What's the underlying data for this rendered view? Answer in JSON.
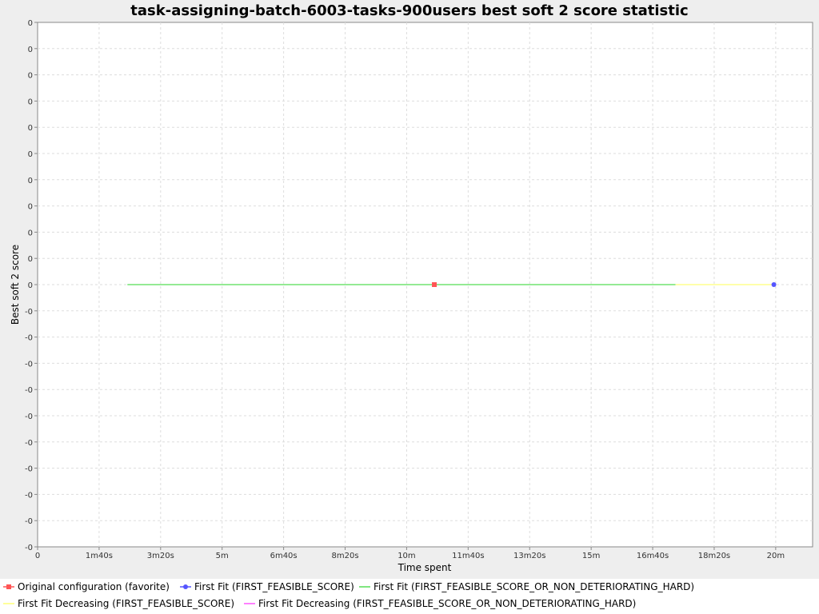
{
  "chart_data": {
    "type": "line",
    "title": "task-assigning-batch-6003-tasks-900users best soft 2 score statistic",
    "xlabel": "Time spent",
    "ylabel": "Best soft 2 score",
    "x_ticks": [
      "0",
      "1m40s",
      "3m20s",
      "5m",
      "6m40s",
      "8m20s",
      "10m",
      "11m40s",
      "13m20s",
      "15m",
      "16m40s",
      "18m20s",
      "20m"
    ],
    "x_tick_values": [
      0,
      100,
      200,
      300,
      400,
      500,
      600,
      700,
      800,
      900,
      1000,
      1100,
      1200
    ],
    "xlim": [
      0,
      1260
    ],
    "y_ticks": [
      "0",
      "0",
      "0",
      "0",
      "0",
      "0",
      "0",
      "0",
      "0",
      "0",
      "0",
      "-0",
      "-0",
      "-0",
      "-0",
      "-0",
      "-0",
      "-0",
      "-0",
      "-0",
      "-0"
    ],
    "ylim": [
      -1,
      1
    ],
    "grid": true,
    "legend_position": "bottom",
    "series": [
      {
        "name": "Original configuration (favorite)",
        "color": "#ff5555",
        "marker": "square",
        "points": [
          [
            645,
            0
          ]
        ]
      },
      {
        "name": "First Fit (FIRST_FEASIBLE_SCORE)",
        "color": "#5555ff",
        "marker": "circle",
        "points": [
          [
            1197,
            0
          ]
        ]
      },
      {
        "name": "First Fit (FIRST_FEASIBLE_SCORE_OR_NON_DETERIORATING_HARD)",
        "color": "#55dd55",
        "marker": "none",
        "points": [
          [
            146,
            0
          ],
          [
            1037,
            0
          ]
        ]
      },
      {
        "name": "First Fit Decreasing (FIRST_FEASIBLE_SCORE)",
        "color": "#ffff77",
        "marker": "none",
        "points": [
          [
            1037,
            0
          ],
          [
            1197,
            0
          ]
        ]
      },
      {
        "name": "First Fit Decreasing (FIRST_FEASIBLE_SCORE_OR_NON_DETERIORATING_HARD)",
        "color": "#ff55ff",
        "marker": "none",
        "points": []
      }
    ]
  }
}
